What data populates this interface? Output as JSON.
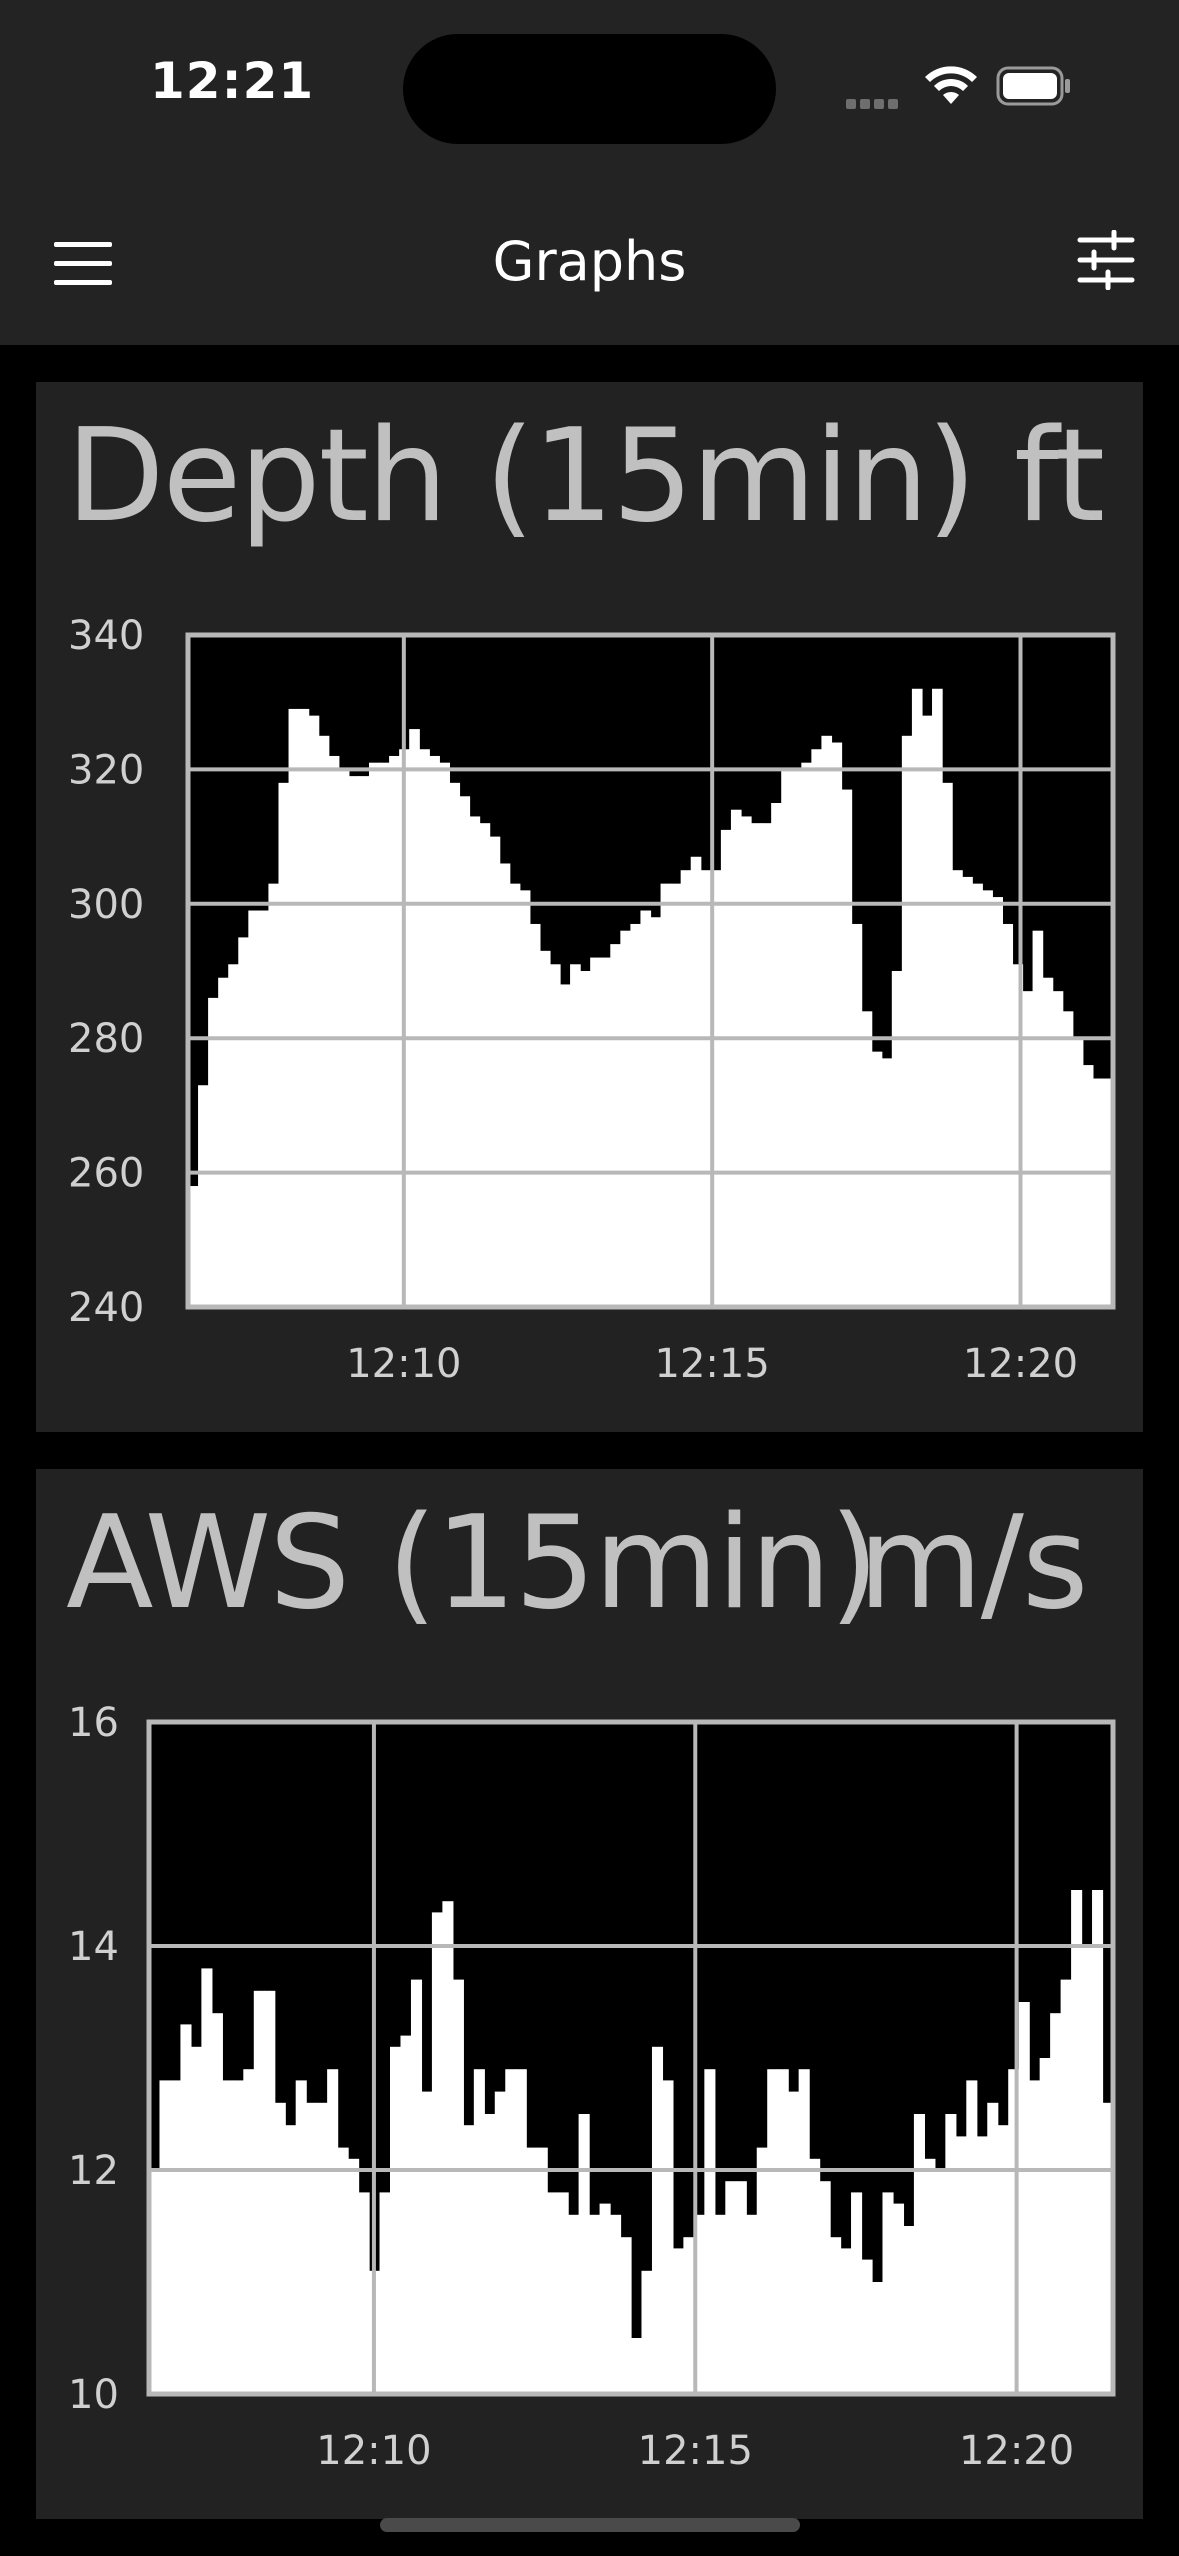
{
  "status_bar": {
    "time": "12:21"
  },
  "nav": {
    "title": "Graphs",
    "menu_icon": "hamburger-menu-icon",
    "filter_icon": "sliders-filter-icon"
  },
  "charts": [
    {
      "id": "depth",
      "title": "Depth (15min)",
      "unit": "ft",
      "chart_data": {
        "type": "area",
        "title": "Depth (15min)",
        "unit": "ft",
        "ylim": [
          240,
          340
        ],
        "y_ticks": [
          "340",
          "320",
          "300",
          "280",
          "260",
          "240"
        ],
        "x_ticks": [
          "12:10",
          "12:15",
          "12:20"
        ],
        "x_tick_minutes": [
          10,
          15,
          20
        ],
        "xlim_minutes": [
          6.5,
          21.5
        ],
        "grid": true,
        "values": [
          258,
          273,
          286,
          289,
          291,
          295,
          299,
          299,
          303,
          318,
          329,
          329,
          328,
          325,
          322,
          320,
          319,
          319,
          321,
          321,
          322,
          323,
          326,
          323,
          322,
          321,
          318,
          316,
          313,
          312,
          310,
          306,
          303,
          302,
          297,
          293,
          291,
          288,
          291,
          290,
          292,
          292,
          294,
          296,
          297,
          299,
          298,
          303,
          303,
          305,
          307,
          305,
          305,
          311,
          314,
          313,
          312,
          312,
          315,
          320,
          320,
          321,
          323,
          325,
          324,
          317,
          297,
          284,
          278,
          277,
          290,
          325,
          332,
          328,
          332,
          318,
          305,
          304,
          303,
          302,
          301,
          297,
          291,
          287,
          296,
          289,
          287,
          284,
          280,
          276,
          274,
          274
        ]
      }
    },
    {
      "id": "aws",
      "title": "AWS (15min)",
      "unit": "m/s",
      "chart_data": {
        "type": "area",
        "title": "AWS (15min)",
        "unit": "m/s",
        "ylim": [
          10,
          16
        ],
        "y_ticks": [
          "16",
          "14",
          "12",
          "10"
        ],
        "x_ticks": [
          "12:10",
          "12:15",
          "12:20"
        ],
        "x_tick_minutes": [
          10,
          15,
          20
        ],
        "xlim_minutes": [
          6.5,
          21.5
        ],
        "grid": true,
        "values": [
          12.0,
          12.8,
          12.8,
          13.3,
          13.1,
          13.8,
          13.4,
          12.8,
          12.8,
          12.9,
          13.6,
          13.6,
          12.6,
          12.4,
          12.8,
          12.6,
          12.6,
          12.9,
          12.2,
          12.1,
          11.8,
          11.1,
          11.8,
          13.1,
          13.2,
          13.7,
          12.7,
          14.3,
          14.4,
          13.7,
          12.4,
          12.9,
          12.5,
          12.7,
          12.9,
          12.9,
          12.2,
          12.2,
          11.8,
          11.8,
          11.6,
          12.5,
          11.6,
          11.7,
          11.6,
          11.4,
          10.5,
          11.1,
          13.1,
          12.8,
          11.3,
          11.4,
          11.6,
          12.9,
          11.6,
          11.9,
          11.9,
          11.6,
          12.2,
          12.9,
          12.9,
          12.7,
          12.9,
          12.1,
          11.9,
          11.4,
          11.3,
          11.8,
          11.2,
          11.0,
          11.8,
          11.7,
          11.5,
          12.5,
          12.1,
          12.0,
          12.5,
          12.3,
          12.8,
          12.3,
          12.6,
          12.4,
          12.9,
          13.5,
          12.8,
          13.0,
          13.4,
          13.7,
          14.5,
          14.0,
          14.5,
          12.6
        ]
      }
    }
  ]
}
